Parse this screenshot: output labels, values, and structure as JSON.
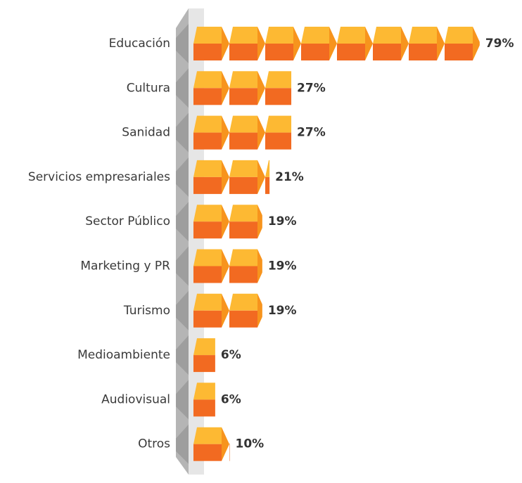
{
  "chart_data": {
    "type": "bar",
    "categories": [
      "Educación",
      "Cultura",
      "Sanidad",
      "Servicios empresariales",
      "Sector Público",
      "Marketing y PR",
      "Turismo",
      "Medioambiente",
      "Audiovisual",
      "Otros"
    ],
    "values": [
      79,
      27,
      27,
      21,
      19,
      19,
      19,
      6,
      6,
      10
    ],
    "value_labels": [
      "79%",
      "27%",
      "27%",
      "21%",
      "19%",
      "19%",
      "19%",
      "6%",
      "6%",
      "10%"
    ],
    "color": "#f26a21"
  }
}
